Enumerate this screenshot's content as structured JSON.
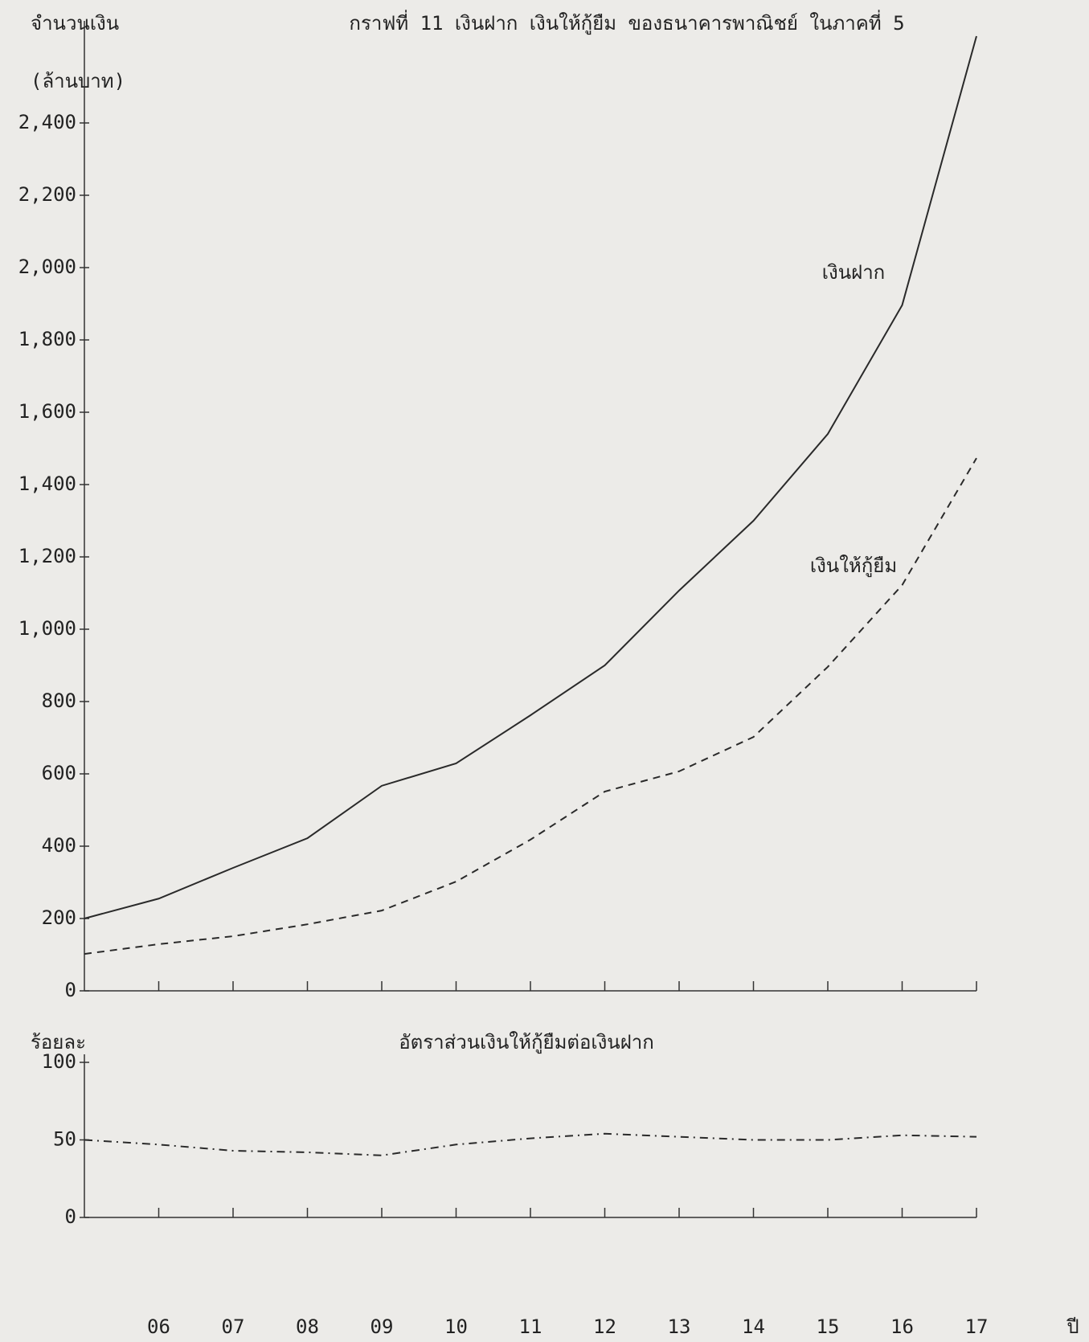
{
  "chart_data": [
    {
      "type": "line",
      "title": "กราฟที่ 11 เงินฝาก เงินให้กู้ยืม ของธนาคารพาณิชย์ ในภาคที่ 5",
      "y_label": "จำนวนเงิน",
      "y_unit": "(ล้านบาท)",
      "x": [
        5,
        6,
        7,
        8,
        9,
        10,
        11,
        12,
        13,
        14,
        15,
        16,
        17
      ],
      "xlim": [
        5,
        17
      ],
      "xticks": [
        6,
        7,
        8,
        9,
        10,
        11,
        12,
        13,
        14,
        15,
        16,
        17
      ],
      "ylim": [
        0,
        2660
      ],
      "yticks": [
        0,
        200,
        400,
        600,
        800,
        {
          "value": 1000,
          "label": "1,000"
        },
        {
          "value": 1200,
          "label": "1,200"
        },
        {
          "value": 1400,
          "label": "1,400"
        },
        {
          "value": 1600,
          "label": "1,600"
        },
        {
          "value": 1800,
          "label": "1,800"
        },
        {
          "value": 2000,
          "label": "2,000"
        },
        {
          "value": 2200,
          "label": "2,200"
        },
        {
          "value": 2400,
          "label": "2,400"
        }
      ],
      "series": [
        {
          "name": "เงินฝาก",
          "color": "#2a2a2a",
          "style": "solid",
          "values": [
            200,
            255,
            340,
            422,
            567,
            629,
            762,
            900,
            1107,
            1300,
            1540,
            1896,
            2640
          ]
        },
        {
          "name": "เงินให้กู้ยืม",
          "color": "#2a2a2a",
          "style": "dashed",
          "values": [
            102,
            129,
            151,
            184,
            222,
            302,
            418,
            551,
            607,
            702,
            896,
            1122,
            1473
          ]
        }
      ]
    },
    {
      "type": "line",
      "title": "อัตราส่วนเงินให้กู้ยืมต่อเงินฝาก",
      "y_label": "ร้อยละ",
      "x_label": "ปี",
      "x": [
        5,
        6,
        7,
        8,
        9,
        10,
        11,
        12,
        13,
        14,
        15,
        16,
        17
      ],
      "xlim": [
        5,
        17
      ],
      "xticks": [
        {
          "value": 6,
          "label": "06"
        },
        {
          "value": 7,
          "label": "07"
        },
        {
          "value": 8,
          "label": "08"
        },
        {
          "value": 9,
          "label": "09"
        },
        10,
        11,
        12,
        13,
        14,
        15,
        16,
        17
      ],
      "ylim": [
        0,
        100
      ],
      "yticks": [
        0,
        50,
        100
      ],
      "series": [
        {
          "color": "#2a2a2a",
          "style": "dashdot",
          "values": [
            50,
            47,
            43,
            42,
            40,
            47,
            51,
            54,
            52,
            50,
            50,
            53,
            52
          ]
        }
      ]
    }
  ]
}
